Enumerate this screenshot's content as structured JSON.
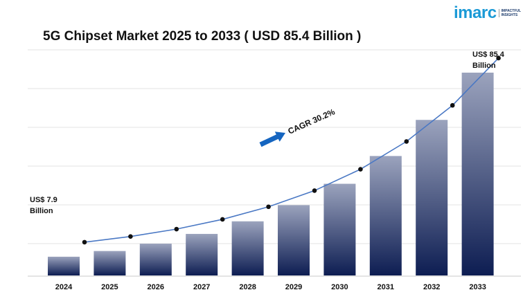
{
  "title": "5G Chipset Market 2025 to 2033 ( USD 85.4 Billion )",
  "logo": {
    "word": "imarc",
    "tag_line_1": "IMPACTFUL",
    "tag_line_2": "INSIGHTS",
    "color": "#1b9ad6"
  },
  "colors": {
    "bar_top": "#9ba3bd",
    "bar_bottom": "#0d1d52",
    "line": "#4a78c4",
    "marker": "#111111",
    "arrow": "#1565c0",
    "grid": "#e3e3e3"
  },
  "chart_data": {
    "type": "bar",
    "title": "5G Chipset Market 2025 to 2033 ( USD 85.4 Billion )",
    "categories": [
      "2024",
      "2025",
      "2026",
      "2027",
      "2028",
      "2029",
      "2030",
      "2031",
      "2032",
      "2033"
    ],
    "series": [
      {
        "values": [
          7.9,
          10.3,
          13.4,
          17.5,
          22.8,
          29.6,
          38.6,
          50.3,
          65.5,
          85.4
        ]
      }
    ],
    "overlay_line": {
      "style": "line-with-markers",
      "follows": "series[0]"
    },
    "ylim": [
      0,
      95
    ],
    "grid": true,
    "xlabel": "",
    "ylabel": "",
    "annotations": {
      "start_label_1": "US$ 7.9",
      "start_label_2": "Billion",
      "end_label_1": "US$ 85.4",
      "end_label_2": "Billion",
      "cagr_label": "CAGR 30.2%"
    }
  }
}
